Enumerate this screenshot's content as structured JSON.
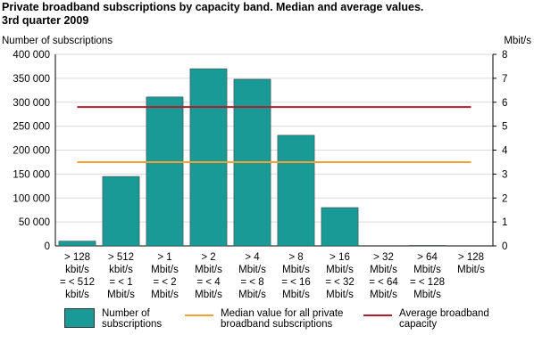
{
  "chart_data": {
    "type": "bar",
    "title": [
      "Private broadband subscriptions by capacity band. Median and average values.",
      "3rd quarter 2009"
    ],
    "ylabel": "Number of subscriptions",
    "y2label": "Mbit/s",
    "categories": [
      [
        "> 128",
        "kbit/s",
        "= < 512",
        "kbit/s"
      ],
      [
        "> 512",
        "kbit/s",
        "= < 1",
        "Mbit/s"
      ],
      [
        "> 1",
        "Mbit/s",
        "= < 2",
        "Mbit/s"
      ],
      [
        "> 2",
        "Mbit/s",
        "= < 4",
        "Mbit/s"
      ],
      [
        "> 4",
        "Mbit/s",
        "= < 8",
        "Mbit/s"
      ],
      [
        "> 8",
        "Mbit/s",
        "= < 16",
        "Mbit/s"
      ],
      [
        "> 16",
        "Mbit/s",
        "= < 32",
        "Mbit/s"
      ],
      [
        "> 32",
        "Mbit/s",
        "= < 64",
        "Mbit/s"
      ],
      [
        "> 64",
        "Mbit/s",
        "= < 128",
        "Mbit/s"
      ],
      [
        "> 128",
        "Mbit/s"
      ]
    ],
    "series": [
      {
        "name": "Number of subscriptions",
        "type": "bar",
        "color": "#1a9a96",
        "values": [
          10000,
          145000,
          311000,
          370000,
          348000,
          231000,
          80000,
          0,
          1000,
          0
        ]
      },
      {
        "name": "Median value for all private broadband subscriptions",
        "type": "line",
        "axis": "y2",
        "color": "#f5a130",
        "values": [
          3.5,
          3.5,
          3.5,
          3.5,
          3.5,
          3.5,
          3.5,
          3.5,
          3.5,
          3.5
        ]
      },
      {
        "name": "Average broadband capacity",
        "type": "line",
        "axis": "y2",
        "color": "#b01c2e",
        "values": [
          5.8,
          5.8,
          5.8,
          5.8,
          5.8,
          5.8,
          5.8,
          5.8,
          5.8,
          5.8
        ]
      }
    ],
    "ylim": [
      0,
      400000
    ],
    "yticks": [
      {
        "value": 0,
        "label": "0"
      },
      {
        "value": 50000,
        "label": "50 000"
      },
      {
        "value": 100000,
        "label": "100 000"
      },
      {
        "value": 150000,
        "label": "150 000"
      },
      {
        "value": 200000,
        "label": "200 000"
      },
      {
        "value": 250000,
        "label": "250 000"
      },
      {
        "value": 300000,
        "label": "300 000"
      },
      {
        "value": 350000,
        "label": "350 000"
      },
      {
        "value": 400000,
        "label": "400 000"
      }
    ],
    "y2lim": [
      0,
      8
    ],
    "y2ticks": [
      0,
      1,
      2,
      3,
      4,
      5,
      6,
      7,
      8
    ],
    "grid": true
  }
}
